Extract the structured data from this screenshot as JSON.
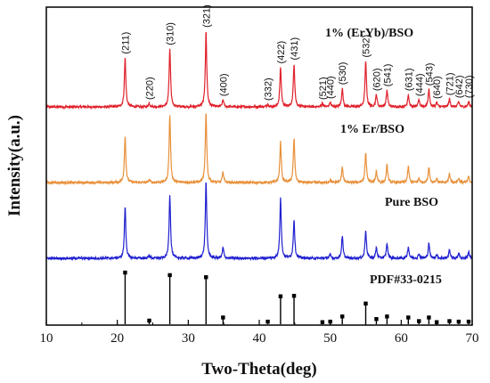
{
  "chart_data": {
    "type": "line",
    "xlabel": "Two-Theta(deg)",
    "ylabel": "Intensity(a.u.)",
    "xlim": [
      10,
      70
    ],
    "x_ticks": [
      10,
      20,
      30,
      40,
      50,
      60,
      70
    ],
    "grid": false,
    "series": [
      {
        "name": "1% (ErYb)/BSO",
        "color": "#e0202a",
        "peaks": [
          [
            21.1,
            56
          ],
          [
            24.5,
            4
          ],
          [
            27.4,
            66
          ],
          [
            32.5,
            86
          ],
          [
            34.9,
            8
          ],
          [
            41.2,
            3
          ],
          [
            43.0,
            45
          ],
          [
            44.9,
            49
          ],
          [
            48.9,
            4
          ],
          [
            50.0,
            5
          ],
          [
            51.7,
            21
          ],
          [
            55.0,
            52
          ],
          [
            56.5,
            14
          ],
          [
            58.0,
            19
          ],
          [
            61.0,
            14
          ],
          [
            62.5,
            8
          ],
          [
            63.9,
            20
          ],
          [
            65.0,
            5
          ],
          [
            66.8,
            9
          ],
          [
            68.1,
            6
          ],
          [
            69.5,
            6
          ]
        ],
        "hkl_labels": [
          {
            "text": "(211)",
            "x": 21.1
          },
          {
            "text": "(220)",
            "x": 24.5
          },
          {
            "text": "(310)",
            "x": 27.4
          },
          {
            "text": "(321)",
            "x": 32.5
          },
          {
            "text": "(400)",
            "x": 34.9
          },
          {
            "text": "(332)",
            "x": 41.2
          },
          {
            "text": "(422)",
            "x": 43.0
          },
          {
            "text": "(431)",
            "x": 44.9
          },
          {
            "text": "(521)",
            "x": 48.9
          },
          {
            "text": "(440)",
            "x": 50.0
          },
          {
            "text": "(530)",
            "x": 51.7
          },
          {
            "text": "(532)",
            "x": 55.0
          },
          {
            "text": "(620)",
            "x": 56.5
          },
          {
            "text": "(541)",
            "x": 58.0
          },
          {
            "text": "(631)",
            "x": 61.0
          },
          {
            "text": "(444)",
            "x": 62.5
          },
          {
            "text": "(543)",
            "x": 63.9
          },
          {
            "text": "(640)",
            "x": 65.0
          },
          {
            "text": "(721)",
            "x": 66.8
          },
          {
            "text": "(642)",
            "x": 68.1
          },
          {
            "text": "(730)",
            "x": 69.5
          }
        ]
      },
      {
        "name": "1% Er/BSO",
        "color": "#e8903a",
        "peaks": [
          [
            21.1,
            53
          ],
          [
            24.5,
            3
          ],
          [
            27.4,
            77
          ],
          [
            32.5,
            80
          ],
          [
            34.9,
            12
          ],
          [
            43.0,
            46
          ],
          [
            44.9,
            50
          ],
          [
            50.0,
            3
          ],
          [
            51.7,
            18
          ],
          [
            55.0,
            34
          ],
          [
            56.5,
            13
          ],
          [
            58.0,
            20
          ],
          [
            61.0,
            18
          ],
          [
            62.5,
            5
          ],
          [
            63.9,
            18
          ],
          [
            65.0,
            4
          ],
          [
            66.8,
            10
          ],
          [
            68.1,
            5
          ],
          [
            69.5,
            7
          ]
        ]
      },
      {
        "name": "Pure BSO",
        "color": "#2020d0",
        "peaks": [
          [
            21.1,
            59
          ],
          [
            24.5,
            3
          ],
          [
            27.4,
            72
          ],
          [
            32.5,
            88
          ],
          [
            34.9,
            12
          ],
          [
            43.0,
            69
          ],
          [
            44.9,
            44
          ],
          [
            50.0,
            4
          ],
          [
            51.7,
            25
          ],
          [
            55.0,
            32
          ],
          [
            56.5,
            12
          ],
          [
            58.0,
            17
          ],
          [
            61.0,
            13
          ],
          [
            62.5,
            5
          ],
          [
            63.9,
            17
          ],
          [
            65.0,
            4
          ],
          [
            66.8,
            10
          ],
          [
            68.1,
            6
          ],
          [
            69.5,
            7
          ]
        ]
      },
      {
        "name": "PDF#33-0215",
        "color": "#000000",
        "sticks": [
          [
            21.1,
            100
          ],
          [
            24.5,
            7
          ],
          [
            27.4,
            95
          ],
          [
            32.5,
            91
          ],
          [
            34.9,
            13
          ],
          [
            41.2,
            5
          ],
          [
            43.0,
            54
          ],
          [
            44.9,
            55
          ],
          [
            48.9,
            4
          ],
          [
            50.0,
            5
          ],
          [
            51.7,
            15
          ],
          [
            55.0,
            40
          ],
          [
            56.5,
            10
          ],
          [
            58.0,
            15
          ],
          [
            61.0,
            13
          ],
          [
            62.5,
            6
          ],
          [
            63.9,
            13
          ],
          [
            65.0,
            4
          ],
          [
            66.8,
            6
          ],
          [
            68.1,
            5
          ],
          [
            69.5,
            5
          ]
        ]
      }
    ]
  }
}
